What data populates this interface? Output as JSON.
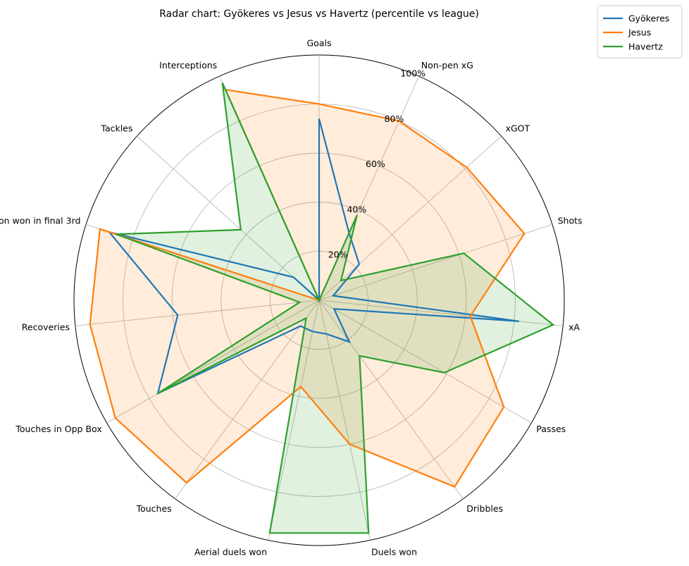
{
  "chart_data": {
    "type": "radar",
    "title": "Radar chart: Gyökeres vs Jesus vs Havertz (percentile vs league)",
    "categories": [
      "Goals",
      "Non-pen xG",
      "xGOT",
      "Shots",
      "xA",
      "Passes",
      "Dribbles",
      "Duels won",
      "Aerial duels won",
      "Touches",
      "Touches in Opp Box",
      "Recoveries",
      "Possession won in final 3rd",
      "Tackles",
      "Interceptions"
    ],
    "rlim": [
      0,
      100
    ],
    "r_ticks": [
      20,
      40,
      60,
      80,
      100
    ],
    "r_tick_labels": [
      "20%",
      "40%",
      "60%",
      "80%",
      "100%"
    ],
    "grid": true,
    "legend_position": "top-right",
    "series": [
      {
        "name": "Gyökeres",
        "color": "#1f77b4",
        "fill": false,
        "values": [
          74,
          30,
          22,
          6,
          82,
          7,
          21,
          14,
          13,
          13,
          76,
          58,
          90,
          14,
          0
        ]
      },
      {
        "name": "Jesus",
        "color": "#ff7f0e",
        "fill": true,
        "values": [
          80,
          80,
          81,
          88,
          62,
          87,
          94,
          60,
          36,
          92,
          96,
          94,
          94,
          0,
          94
        ]
      },
      {
        "name": "Havertz",
        "color": "#2ca02c",
        "fill": true,
        "values": [
          0,
          38,
          12,
          62,
          96,
          59,
          28,
          97,
          97,
          9,
          76,
          8,
          87,
          43,
          97
        ]
      }
    ]
  }
}
